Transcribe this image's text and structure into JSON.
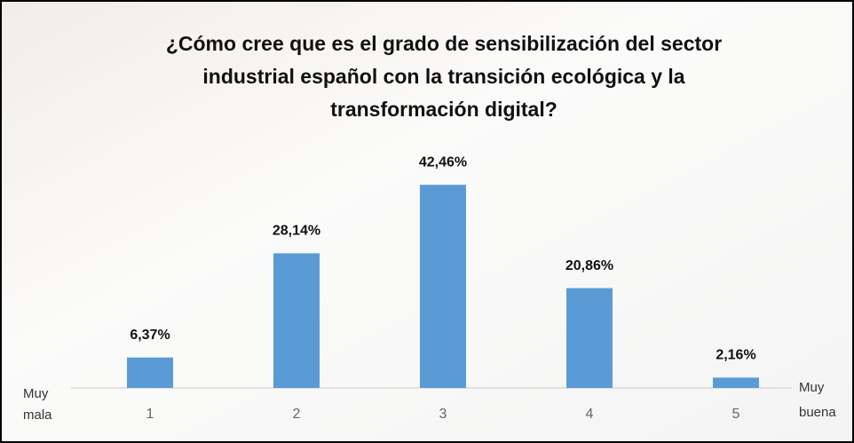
{
  "chart_data": {
    "type": "bar",
    "title": [
      "¿Cómo cree que es el grado de sensibilización del sector",
      "industrial español con la transición ecológica y la",
      "transformación digital?"
    ],
    "categories": [
      "1",
      "2",
      "3",
      "4",
      "5"
    ],
    "values": [
      6.37,
      28.14,
      42.46,
      20.86,
      2.16
    ],
    "value_labels": [
      "6,37%",
      "28,14%",
      "42,46%",
      "20,86%",
      "2,16%"
    ],
    "color": "#5b9bd5",
    "left_label": [
      "Muy",
      "mala"
    ],
    "right_label": [
      "Muy",
      "buena"
    ]
  }
}
